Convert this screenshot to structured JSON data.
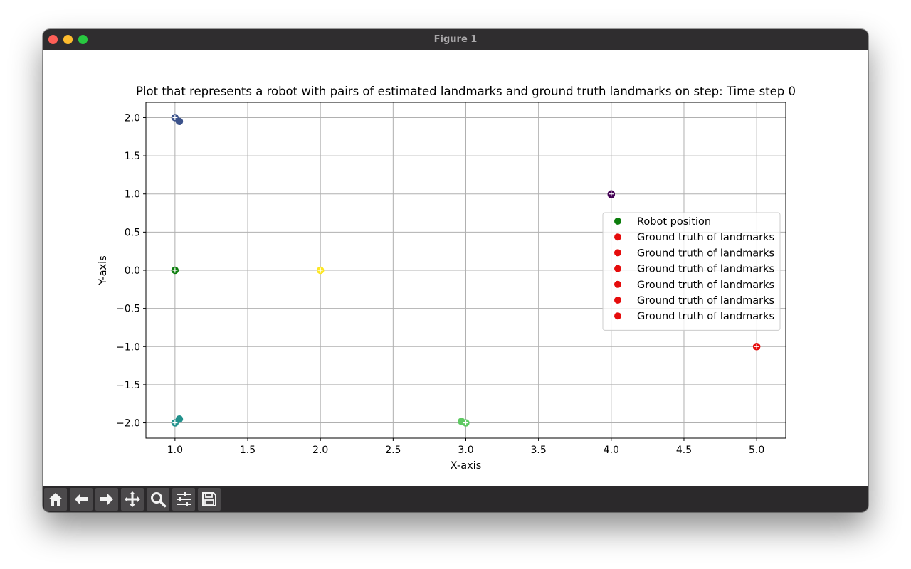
{
  "window": {
    "title": "Figure 1"
  },
  "toolbar": {
    "buttons": [
      {
        "icon": "home-icon"
      },
      {
        "icon": "back-arrow-icon"
      },
      {
        "icon": "forward-arrow-icon"
      },
      {
        "icon": "pan-move-icon"
      },
      {
        "icon": "zoom-magnifier-icon"
      },
      {
        "icon": "configure-subplots-icon"
      },
      {
        "icon": "save-floppy-icon"
      }
    ]
  },
  "chart_data": {
    "type": "scatter",
    "title": "Plot that represents a robot with pairs of estimated landmarks and ground truth landmarks on step: Time step 0",
    "xlabel": "X-axis",
    "ylabel": "Y-axis",
    "xlim": [
      0.8,
      5.2
    ],
    "ylim": [
      -2.2,
      2.2
    ],
    "xticks": [
      "1.0",
      "1.5",
      "2.0",
      "2.5",
      "3.0",
      "3.5",
      "4.0",
      "4.5",
      "5.0"
    ],
    "yticks": [
      "2.0",
      "1.5",
      "1.0",
      "0.5",
      "0.0",
      "−0.5",
      "−1.0",
      "−1.5",
      "−2.0"
    ],
    "grid": true,
    "legend_position": "center-right",
    "legend": [
      {
        "label": "Robot position",
        "color": "#0c7d0c"
      },
      {
        "label": "Ground truth of landmarks",
        "color": "#e50c0c"
      },
      {
        "label": "Ground truth of landmarks",
        "color": "#e50c0c"
      },
      {
        "label": "Ground truth of landmarks",
        "color": "#e50c0c"
      },
      {
        "label": "Ground truth of landmarks",
        "color": "#e50c0c"
      },
      {
        "label": "Ground truth of landmarks",
        "color": "#e50c0c"
      },
      {
        "label": "Ground truth of landmarks",
        "color": "#e50c0c"
      }
    ],
    "robot": {
      "x": 1.0,
      "y": 0.0,
      "color": "#0c7d0c"
    },
    "landmark_pairs": [
      {
        "ground_truth": {
          "x": 4.0,
          "y": 1.0
        },
        "estimate": {
          "x": 4.0,
          "y": 0.99
        },
        "color": "#440154"
      },
      {
        "ground_truth": {
          "x": 1.0,
          "y": 2.0
        },
        "estimate": {
          "x": 1.03,
          "y": 1.95
        },
        "color": "#3b528b"
      },
      {
        "ground_truth": {
          "x": 1.0,
          "y": -2.0
        },
        "estimate": {
          "x": 1.03,
          "y": -1.95
        },
        "color": "#21918c"
      },
      {
        "ground_truth": {
          "x": 3.0,
          "y": -2.0
        },
        "estimate": {
          "x": 2.97,
          "y": -1.98
        },
        "color": "#5ec962"
      },
      {
        "ground_truth": {
          "x": 2.0,
          "y": 0.0
        },
        "estimate": {
          "x": 2.0,
          "y": 0.0
        },
        "color": "#fde725"
      },
      {
        "ground_truth": {
          "x": 5.0,
          "y": -1.0
        },
        "estimate": {
          "x": 5.0,
          "y": -1.0
        },
        "color": "#e50c0c"
      }
    ]
  }
}
